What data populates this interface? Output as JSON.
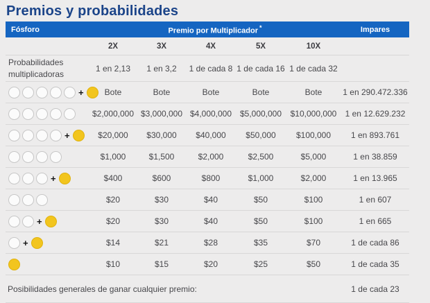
{
  "title": "Premios y probabilidades",
  "colors": {
    "accent_blue": "#1565C1",
    "title_navy": "#1B4489",
    "ball_yellow": "#F2C51E",
    "background_gray": "#EDECEC"
  },
  "header_bar": {
    "col_fosforo": "Fósforo",
    "col_premio": "Premio por Multiplicador",
    "col_premio_note": "*",
    "col_impares": "Impares"
  },
  "multipliers": [
    "2X",
    "3X",
    "4X",
    "5X",
    "10X"
  ],
  "multiplier_probabilities": {
    "label": "Probabilidades multiplicadoras",
    "values": [
      "1 en 2,13",
      "1 en 3,2",
      "1 de cada 8",
      "1 de cada 16",
      "1 de cada 32"
    ]
  },
  "rows": [
    {
      "white_balls": 5,
      "yellow_ball": true,
      "prizes": [
        "Bote",
        "Bote",
        "Bote",
        "Bote",
        "Bote"
      ],
      "odds": "1 en 290.472.336"
    },
    {
      "white_balls": 5,
      "yellow_ball": false,
      "prizes": [
        "$2,000,000",
        "$3,000,000",
        "$4,000,000",
        "$5,000,000",
        "$10,000,000"
      ],
      "odds": "1 en 12.629.232"
    },
    {
      "white_balls": 4,
      "yellow_ball": true,
      "prizes": [
        "$20,000",
        "$30,000",
        "$40,000",
        "$50,000",
        "$100,000"
      ],
      "odds": "1 en 893.761"
    },
    {
      "white_balls": 4,
      "yellow_ball": false,
      "prizes": [
        "$1,000",
        "$1,500",
        "$2,000",
        "$2,500",
        "$5,000"
      ],
      "odds": "1 en 38.859"
    },
    {
      "white_balls": 3,
      "yellow_ball": true,
      "prizes": [
        "$400",
        "$600",
        "$800",
        "$1,000",
        "$2,000"
      ],
      "odds": "1 en 13.965"
    },
    {
      "white_balls": 3,
      "yellow_ball": false,
      "prizes": [
        "$20",
        "$30",
        "$40",
        "$50",
        "$100"
      ],
      "odds": "1 en 607"
    },
    {
      "white_balls": 2,
      "yellow_ball": true,
      "prizes": [
        "$20",
        "$30",
        "$40",
        "$50",
        "$100"
      ],
      "odds": "1 en 665"
    },
    {
      "white_balls": 1,
      "yellow_ball": true,
      "prizes": [
        "$14",
        "$21",
        "$28",
        "$35",
        "$70"
      ],
      "odds": "1 de cada 86"
    },
    {
      "white_balls": 0,
      "yellow_ball": true,
      "prizes": [
        "$10",
        "$15",
        "$20",
        "$25",
        "$50"
      ],
      "odds": "1 de cada 35"
    }
  ],
  "footer": {
    "label": "Posibilidades generales de ganar cualquier premio:",
    "odds": "1 de cada 23"
  }
}
